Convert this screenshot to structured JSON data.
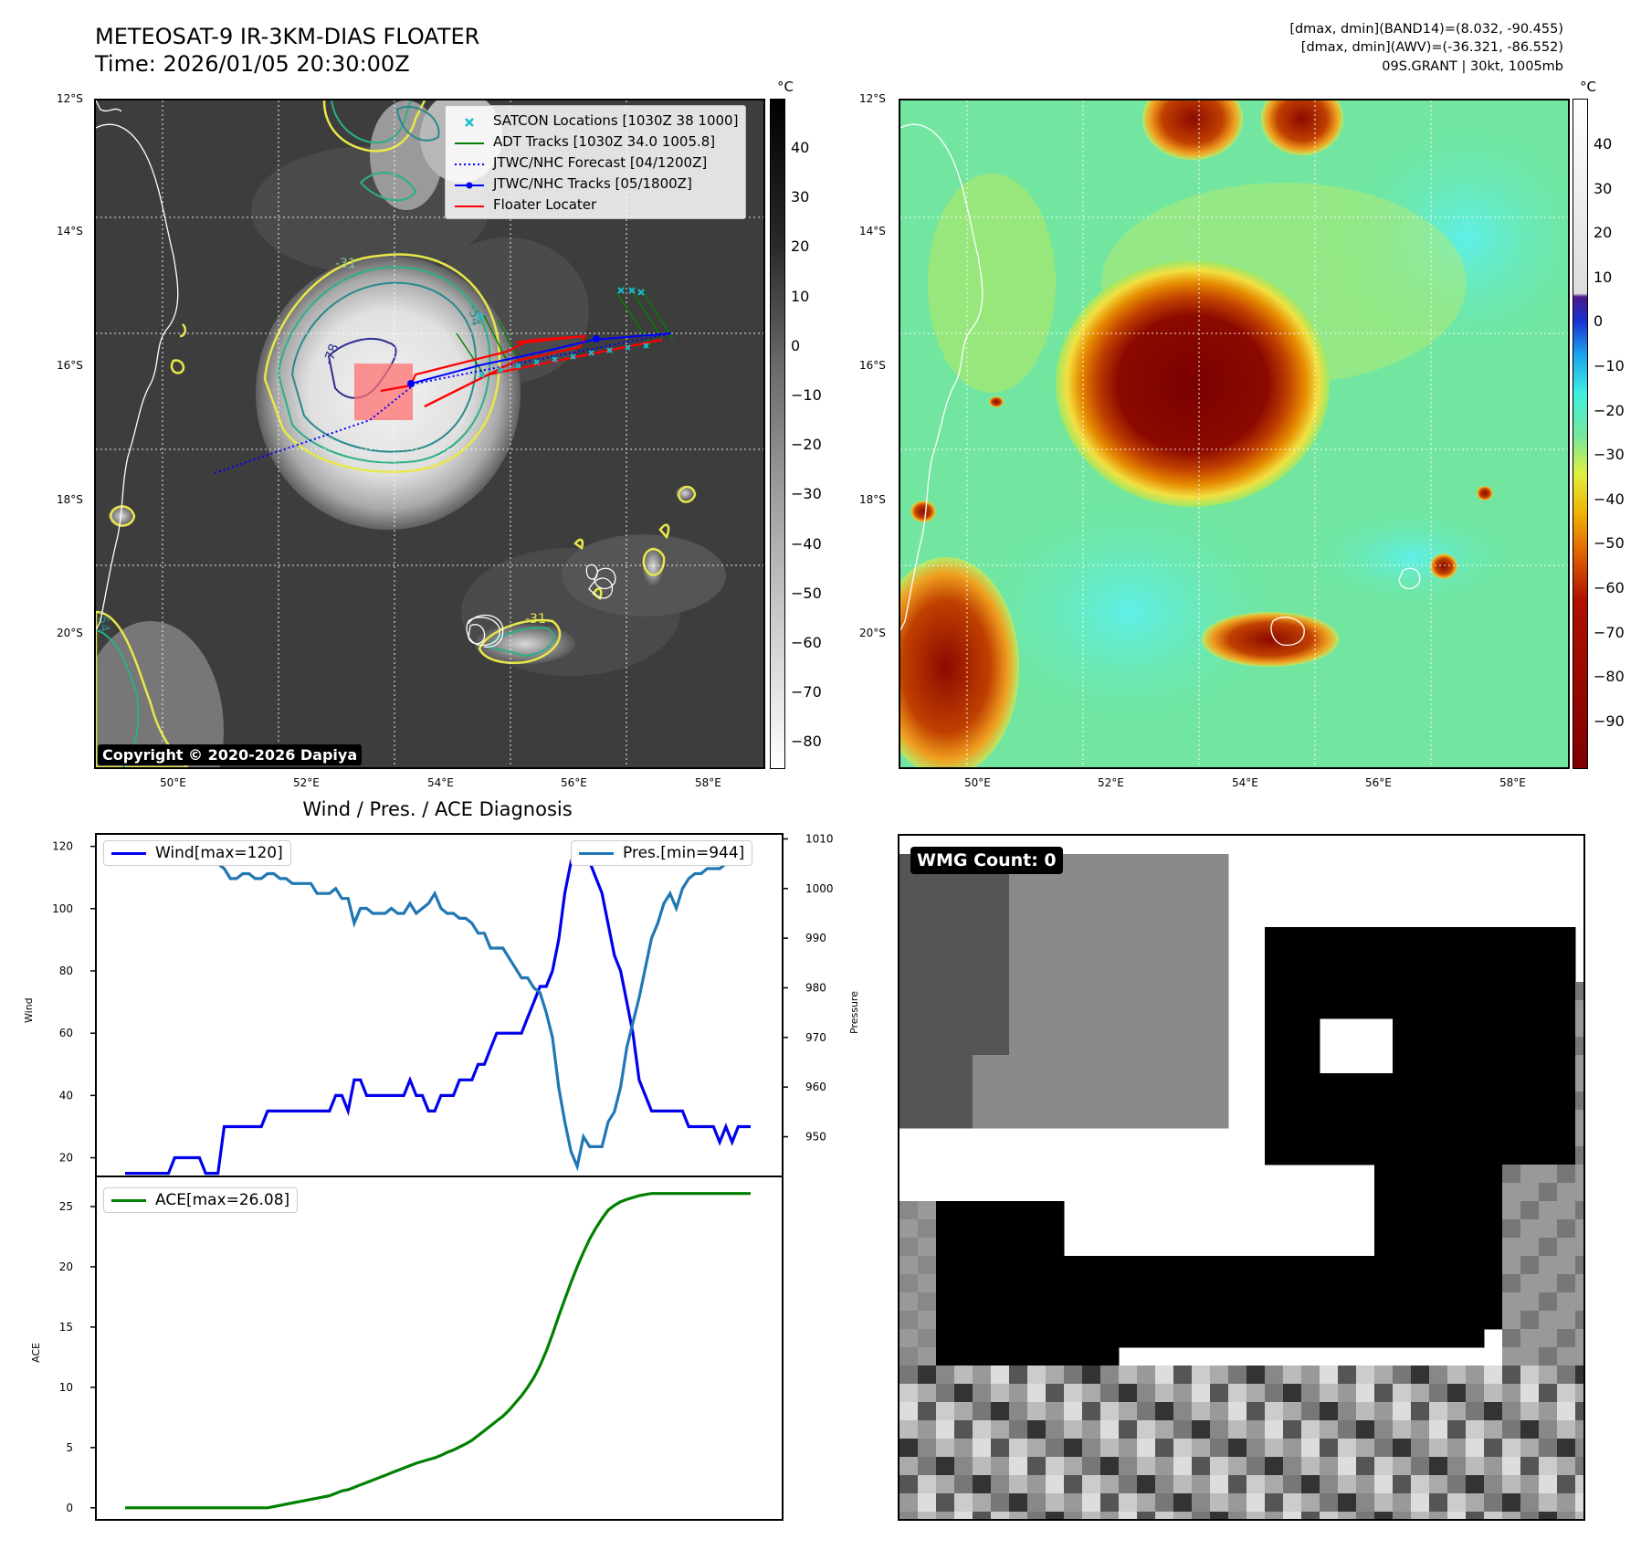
{
  "header": {
    "title_line1": "METEOSAT-9 IR-3KM-DIAS FLOATER",
    "title_line2": "Time: 2026/01/05 20:30:00Z",
    "info_line1": "[dmax, dmin](BAND14)=(8.032, -90.455)",
    "info_line2": "[dmax, dmin](AWV)=(-36.321, -86.552)",
    "info_line3": "09S.GRANT | 30kt, 1005mb"
  },
  "map": {
    "lat_labels": [
      "12°S",
      "14°S",
      "16°S",
      "18°S",
      "20°S"
    ],
    "lon_labels": [
      "50°E",
      "52°E",
      "54°E",
      "56°E",
      "58°E"
    ],
    "contour_labels": [
      "-31",
      "-54",
      "-78",
      "-31",
      "-54"
    ],
    "copyright": "Copyright © 2020-2026 Dapiya",
    "legend": [
      {
        "label": "SATCON Locations [1030Z 38 1000]",
        "color": "#17becf",
        "kind": "x"
      },
      {
        "label": "ADT Tracks [1030Z 34.0 1005.8]",
        "color": "#008000",
        "kind": "line"
      },
      {
        "label": "JTWC/NHC Forecast [04/1200Z]",
        "color": "#0000ff",
        "kind": "dotted"
      },
      {
        "label": "JTWC/NHC Tracks [05/1800Z]",
        "color": "#0000ff",
        "kind": "dotline"
      },
      {
        "label": "Floater Locater",
        "color": "#ff0000",
        "kind": "line"
      }
    ],
    "colorbar_left": {
      "unit": "°C",
      "ticks": [
        "40",
        "30",
        "20",
        "10",
        "0",
        "−10",
        "−20",
        "−30",
        "−40",
        "−50",
        "−60",
        "−70",
        "−80"
      ]
    },
    "colorbar_right": {
      "unit": "°C",
      "ticks": [
        "40",
        "30",
        "20",
        "10",
        "0",
        "−10",
        "−20",
        "−30",
        "−40",
        "−50",
        "−60",
        "−70",
        "−80",
        "−90"
      ]
    }
  },
  "chart_data": [
    {
      "type": "line",
      "title": "Wind / Pres. / ACE Diagnosis",
      "ylabel": "Wind",
      "ylabel_right": "Pressure",
      "ylim": [
        14,
        124
      ],
      "ylim_right": [
        942,
        1011
      ],
      "yticks": [
        "120",
        "100",
        "80",
        "60",
        "40",
        "20"
      ],
      "yticks_right": [
        "1010",
        "1000",
        "990",
        "980",
        "970",
        "960",
        "950"
      ],
      "series": [
        {
          "name": "Wind[max=120]",
          "color": "#0000ee",
          "axis": "left",
          "values": [
            15,
            15,
            15,
            15,
            15,
            15,
            15,
            15,
            20,
            20,
            20,
            20,
            20,
            15,
            15,
            15,
            30,
            30,
            30,
            30,
            30,
            30,
            30,
            35,
            35,
            35,
            35,
            35,
            35,
            35,
            35,
            35,
            35,
            35,
            40,
            40,
            35,
            45,
            45,
            40,
            40,
            40,
            40,
            40,
            40,
            40,
            45,
            40,
            40,
            35,
            35,
            40,
            40,
            40,
            45,
            45,
            45,
            50,
            50,
            55,
            60,
            60,
            60,
            60,
            60,
            65,
            70,
            75,
            75,
            80,
            90,
            105,
            115,
            120,
            117,
            115,
            110,
            105,
            95,
            85,
            80,
            70,
            60,
            45,
            40,
            35,
            35,
            35,
            35,
            35,
            35,
            30,
            30,
            30,
            30,
            30,
            25,
            30,
            25,
            30,
            30,
            30
          ]
        },
        {
          "name": "Pres.[min=944]",
          "color": "#1f77b4",
          "axis": "right",
          "values": [
            1009,
            1009,
            1007,
            1007,
            1007,
            1007,
            1007,
            1007,
            1006,
            1006,
            1005,
            1005,
            1006,
            1006,
            1005,
            1005,
            1004,
            1002,
            1002,
            1003,
            1003,
            1002,
            1002,
            1003,
            1003,
            1002,
            1002,
            1001,
            1001,
            1001,
            1001,
            999,
            999,
            999,
            1000,
            998,
            998,
            993,
            996,
            996,
            995,
            995,
            995,
            996,
            995,
            995,
            997,
            995,
            996,
            997,
            999,
            996,
            995,
            995,
            994,
            994,
            993,
            991,
            991,
            988,
            988,
            988,
            986,
            984,
            982,
            982,
            980,
            979,
            975,
            970,
            960,
            953,
            947,
            944,
            950,
            948,
            948,
            948,
            953,
            955,
            960,
            968,
            973,
            978,
            984,
            990,
            993,
            997,
            999,
            996,
            1000,
            1002,
            1003,
            1003,
            1004,
            1004,
            1004,
            1005,
            1006,
            1006,
            1006,
            1006
          ]
        }
      ]
    },
    {
      "type": "line",
      "ylabel": "ACE",
      "ylim": [
        -1,
        27.5
      ],
      "yticks": [
        "25",
        "20",
        "15",
        "10",
        "5",
        "0"
      ],
      "series": [
        {
          "name": "ACE[max=26.08]",
          "color": "#008000",
          "values": [
            0,
            0,
            0,
            0,
            0,
            0,
            0,
            0,
            0,
            0,
            0,
            0,
            0,
            0,
            0,
            0,
            0,
            0,
            0,
            0,
            0,
            0,
            0,
            0,
            0.1,
            0.2,
            0.3,
            0.4,
            0.5,
            0.6,
            0.7,
            0.8,
            0.9,
            1.0,
            1.2,
            1.4,
            1.5,
            1.7,
            1.9,
            2.1,
            2.3,
            2.5,
            2.7,
            2.9,
            3.1,
            3.3,
            3.5,
            3.7,
            3.85,
            4.0,
            4.15,
            4.35,
            4.6,
            4.8,
            5.05,
            5.3,
            5.6,
            6.0,
            6.4,
            6.8,
            7.2,
            7.6,
            8.1,
            8.7,
            9.3,
            10.0,
            10.8,
            11.8,
            13.0,
            14.4,
            15.9,
            17.3,
            18.7,
            20.0,
            21.2,
            22.3,
            23.2,
            24.0,
            24.7,
            25.1,
            25.4,
            25.6,
            25.75,
            25.9,
            26.0,
            26.08,
            26.08,
            26.08,
            26.08,
            26.08,
            26.08,
            26.08,
            26.08,
            26.08,
            26.08,
            26.08,
            26.08,
            26.08,
            26.08,
            26.08,
            26.08,
            26.08
          ]
        }
      ]
    }
  ],
  "wmg": {
    "label": "WMG Count: 0"
  }
}
